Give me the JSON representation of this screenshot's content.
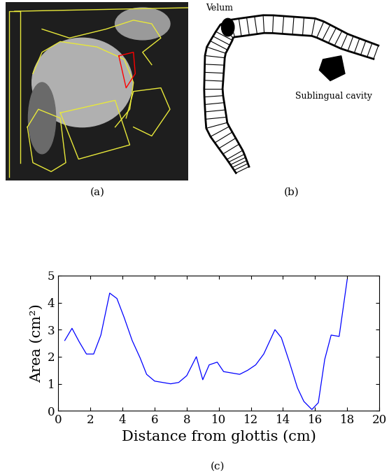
{
  "panel_labels": [
    "(a)",
    "(b)",
    "(c)"
  ],
  "diagram": {
    "labels": [
      "Velum",
      "Sublingual cavity"
    ]
  },
  "chart_data": {
    "type": "line",
    "xlabel": "Distance from glottis (cm)",
    "ylabel": "Area (cm²)",
    "x": [
      0.4,
      0.85,
      1.3,
      1.75,
      2.2,
      2.65,
      3.2,
      3.65,
      4.1,
      4.6,
      5.1,
      5.5,
      6.0,
      6.5,
      7.0,
      7.5,
      8.0,
      8.6,
      9.0,
      9.4,
      9.9,
      10.3,
      10.8,
      11.3,
      11.8,
      12.3,
      12.8,
      13.5,
      13.9,
      14.4,
      14.9,
      15.3,
      15.8,
      16.2,
      16.6,
      17.0,
      17.5,
      18.0
    ],
    "values": [
      2.6,
      3.05,
      2.55,
      2.1,
      2.1,
      2.8,
      4.35,
      4.15,
      3.45,
      2.6,
      1.95,
      1.35,
      1.1,
      1.05,
      1.0,
      1.05,
      1.3,
      2.0,
      1.15,
      1.7,
      1.8,
      1.45,
      1.4,
      1.35,
      1.5,
      1.7,
      2.1,
      3.0,
      2.7,
      1.8,
      0.85,
      0.35,
      0.05,
      0.3,
      1.9,
      2.8,
      2.75,
      4.85
    ],
    "color": "#0000ff",
    "xlim": [
      0,
      20
    ],
    "ylim": [
      0,
      5
    ],
    "xticks": [
      0,
      2,
      4,
      6,
      8,
      10,
      12,
      14,
      16,
      18,
      20
    ],
    "yticks": [
      0,
      1,
      2,
      3,
      4,
      5
    ]
  }
}
